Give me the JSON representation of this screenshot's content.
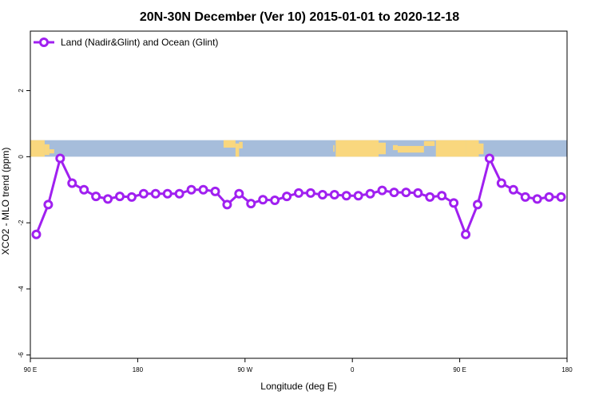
{
  "chart_data": {
    "type": "line",
    "title": "20N-30N December (Ver 10)   2015-01-01 to 2020-12-18",
    "xlabel": "Longitude (deg E)",
    "ylabel": "XCO2 - MLO trend (ppm)",
    "xlim": [
      90,
      540
    ],
    "ylim": [
      -6.1,
      3.8
    ],
    "x_ticks": [
      {
        "value": 90,
        "label": "90 E"
      },
      {
        "value": 180,
        "label": "180"
      },
      {
        "value": 270,
        "label": "90 W"
      },
      {
        "value": 360,
        "label": "0"
      },
      {
        "value": 450,
        "label": "90 E"
      },
      {
        "value": 540,
        "label": "180"
      }
    ],
    "y_ticks": [
      {
        "value": -6,
        "label": "-6"
      },
      {
        "value": -4,
        "label": "-4"
      },
      {
        "value": -2,
        "label": "-2"
      },
      {
        "value": 0,
        "label": "0"
      },
      {
        "value": 2,
        "label": "2"
      }
    ],
    "grid": false,
    "legend_position": "top-left",
    "map_strip": {
      "y_range": [
        0,
        0.5
      ],
      "ocean_color": "#a6bddb",
      "land_color": "#f9d77e"
    },
    "series": [
      {
        "name": "Land (Nadir&Glint) and Ocean (Glint)",
        "color": "#a020f0",
        "x": [
          95,
          105,
          115,
          125,
          135,
          145,
          155,
          165,
          175,
          185,
          195,
          205,
          215,
          225,
          235,
          245,
          255,
          265,
          275,
          285,
          295,
          305,
          315,
          325,
          335,
          345,
          355,
          365,
          375,
          385,
          395,
          405,
          415,
          425,
          435,
          445,
          455,
          465,
          475,
          485,
          495,
          505,
          515,
          525,
          535
        ],
        "y": [
          -2.35,
          -1.45,
          -0.05,
          -0.8,
          -1.0,
          -1.2,
          -1.28,
          -1.2,
          -1.22,
          -1.12,
          -1.12,
          -1.12,
          -1.12,
          -1.0,
          -1.0,
          -1.05,
          -1.45,
          -1.12,
          -1.42,
          -1.3,
          -1.32,
          -1.2,
          -1.1,
          -1.1,
          -1.15,
          -1.15,
          -1.18,
          -1.18,
          -1.12,
          -1.02,
          -1.08,
          -1.08,
          -1.1,
          -1.22,
          -1.18,
          -1.4,
          -2.35,
          -1.45,
          -0.05,
          -0.8,
          -1.0,
          -1.22,
          -1.28,
          -1.22,
          -1.22
        ]
      }
    ]
  }
}
